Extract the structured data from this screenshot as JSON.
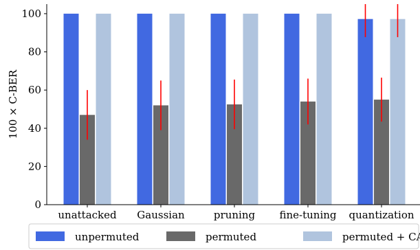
{
  "chart_data": {
    "type": "bar",
    "categories": [
      "unattacked",
      "Gaussian",
      "pruning",
      "fine-tuning",
      "quantization"
    ],
    "ylabel": "100 × C-BER",
    "ylim": [
      0,
      105
    ],
    "yticks": [
      0,
      20,
      40,
      60,
      80,
      100
    ],
    "grid": false,
    "legend_position": "bottom",
    "series": [
      {
        "name": "unpermuted",
        "color": "#4169e1",
        "values": [
          100,
          100,
          100,
          100,
          97.2
        ],
        "errors": [
          null,
          null,
          null,
          null,
          9.5
        ]
      },
      {
        "name": "permuted",
        "color": "#696969",
        "values": [
          47,
          52,
          52.5,
          54,
          55
        ],
        "errors": [
          13,
          13,
          13,
          12,
          11.5
        ]
      },
      {
        "name": "permuted + CA",
        "color": "#b0c4de",
        "values": [
          100,
          100,
          100,
          100,
          97.2
        ],
        "errors": [
          null,
          null,
          null,
          null,
          9.5
        ]
      }
    ],
    "error_color": "#ff0000"
  }
}
